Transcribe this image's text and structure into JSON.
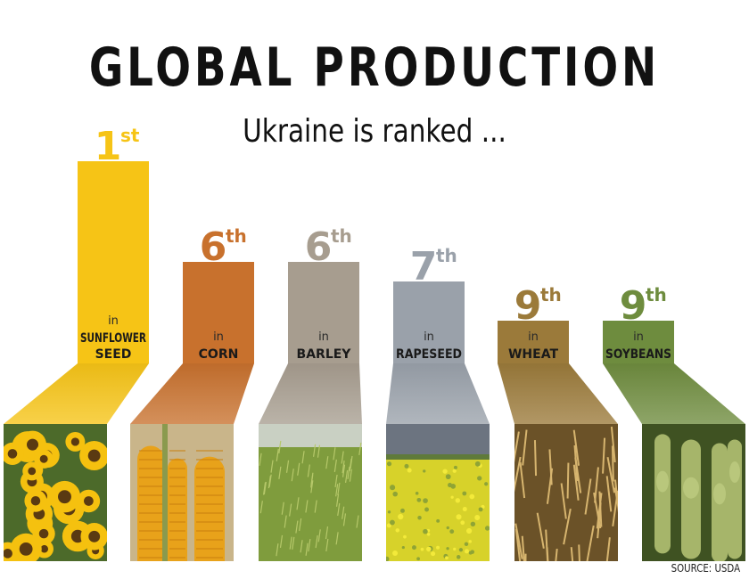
{
  "title": "GLOBAL PRODUCTION",
  "subtitle": "Ukraine is ranked  ...",
  "source": "SOURCE: USDA",
  "chart_data": {
    "type": "bar",
    "categories": [
      "SUNFLOWER SEED",
      "CORN",
      "BARLEY",
      "RAPESEED",
      "WHEAT",
      "SOYBEANS"
    ],
    "ranks": [
      1,
      6,
      6,
      7,
      9,
      9
    ],
    "rank_labels": [
      {
        "num": "1",
        "suffix": "st"
      },
      {
        "num": "6",
        "suffix": "th"
      },
      {
        "num": "6",
        "suffix": "th"
      },
      {
        "num": "7",
        "suffix": "th"
      },
      {
        "num": "9",
        "suffix": "th"
      },
      {
        "num": "9",
        "suffix": "th"
      }
    ],
    "in_label": "in",
    "bar_labels": [
      [
        "SUNFLOWER",
        "SEED"
      ],
      [
        "CORN"
      ],
      [
        "BARLEY"
      ],
      [
        "RAPESEED"
      ],
      [
        "WHEAT"
      ],
      [
        "SOYBEANS"
      ]
    ],
    "colors": [
      "#f6c416",
      "#c8712d",
      "#a79d8f",
      "#9aa1aa",
      "#9b7a3a",
      "#6e8c3e"
    ],
    "photo_subjects": [
      "sunflowers",
      "corn cobs",
      "barley field",
      "rapeseed field",
      "wheat ears",
      "soybean pods"
    ],
    "note": "Bar height reflects rank (lower rank number = taller bar)"
  }
}
